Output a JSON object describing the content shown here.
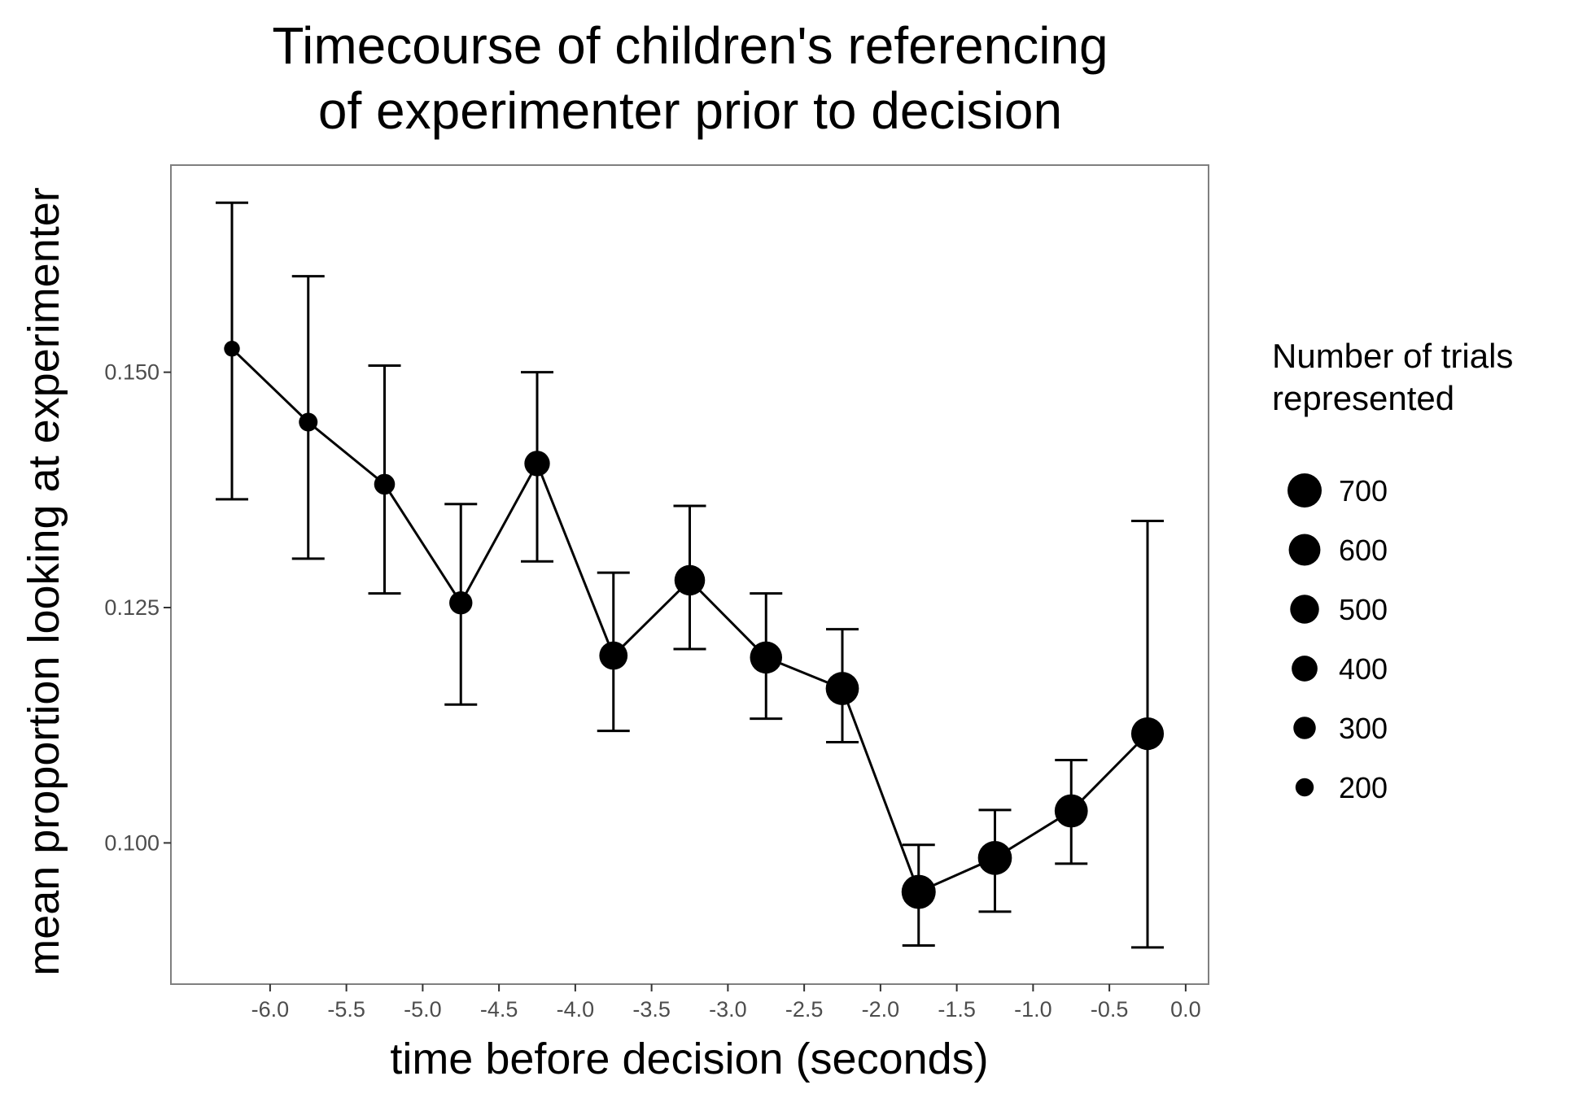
{
  "chart_data": {
    "type": "line",
    "title": [
      "Timecourse of children's referencing",
      "of experimenter prior to decision"
    ],
    "xlabel": "time before decision (seconds)",
    "ylabel": "mean proportion looking at experimenter",
    "xlim": [
      -6.65,
      0.15
    ],
    "ylim": [
      0.085,
      0.172
    ],
    "x_ticks": [
      {
        "value": -6.0,
        "label": "-6.0"
      },
      {
        "value": -5.5,
        "label": "-5.5"
      },
      {
        "value": -5.0,
        "label": "-5.0"
      },
      {
        "value": -4.5,
        "label": "-4.5"
      },
      {
        "value": -4.0,
        "label": "-4.0"
      },
      {
        "value": -3.5,
        "label": "-3.5"
      },
      {
        "value": -3.0,
        "label": "-3.0"
      },
      {
        "value": -2.5,
        "label": "-2.5"
      },
      {
        "value": -2.0,
        "label": "-2.0"
      },
      {
        "value": -1.5,
        "label": "-1.5"
      },
      {
        "value": -1.0,
        "label": "-1.0"
      },
      {
        "value": -0.5,
        "label": "-0.5"
      },
      {
        "value": 0.0,
        "label": "0.0"
      }
    ],
    "y_ticks": [
      {
        "value": 0.1,
        "label": "0.100"
      },
      {
        "value": 0.125,
        "label": "0.125"
      },
      {
        "value": 0.15,
        "label": "0.150"
      }
    ],
    "grid": false,
    "points": [
      {
        "x": -6.25,
        "y": 0.1525,
        "ymin": 0.1365,
        "ymax": 0.168,
        "n": 150
      },
      {
        "x": -5.75,
        "y": 0.1447,
        "ymin": 0.1302,
        "ymax": 0.1602,
        "n": 210
      },
      {
        "x": -5.25,
        "y": 0.1381,
        "ymin": 0.1265,
        "ymax": 0.1507,
        "n": 260
      },
      {
        "x": -4.75,
        "y": 0.1255,
        "ymin": 0.1147,
        "ymax": 0.136,
        "n": 320
      },
      {
        "x": -4.25,
        "y": 0.1403,
        "ymin": 0.1299,
        "ymax": 0.15,
        "n": 390
      },
      {
        "x": -3.75,
        "y": 0.1199,
        "ymin": 0.1119,
        "ymax": 0.1287,
        "n": 480
      },
      {
        "x": -3.25,
        "y": 0.1279,
        "ymin": 0.1206,
        "ymax": 0.1358,
        "n": 560
      },
      {
        "x": -2.75,
        "y": 0.1197,
        "ymin": 0.1132,
        "ymax": 0.1265,
        "n": 620
      },
      {
        "x": -2.25,
        "y": 0.1164,
        "ymin": 0.1107,
        "ymax": 0.1227,
        "n": 660
      },
      {
        "x": -1.75,
        "y": 0.0948,
        "ymin": 0.0891,
        "ymax": 0.0998,
        "n": 700
      },
      {
        "x": -1.25,
        "y": 0.0984,
        "ymin": 0.0927,
        "ymax": 0.1035,
        "n": 690
      },
      {
        "x": -0.75,
        "y": 0.1034,
        "ymin": 0.0978,
        "ymax": 0.1088,
        "n": 660
      },
      {
        "x": -0.25,
        "y": 0.1116,
        "ymin": 0.0889,
        "ymax": 0.1342,
        "n": 640
      }
    ],
    "size_legend": {
      "title": [
        "Number of trials",
        "represented"
      ],
      "entries": [
        {
          "value": 700,
          "label": "700"
        },
        {
          "value": 600,
          "label": "600"
        },
        {
          "value": 500,
          "label": "500"
        },
        {
          "value": 400,
          "label": "400"
        },
        {
          "value": 300,
          "label": "300"
        },
        {
          "value": 200,
          "label": "200"
        }
      ],
      "placement": "right"
    },
    "colors": {
      "points": "#000000",
      "line": "#000000",
      "panel_border": "#7f7f7f",
      "tick_text": "#4d4d4d"
    }
  }
}
